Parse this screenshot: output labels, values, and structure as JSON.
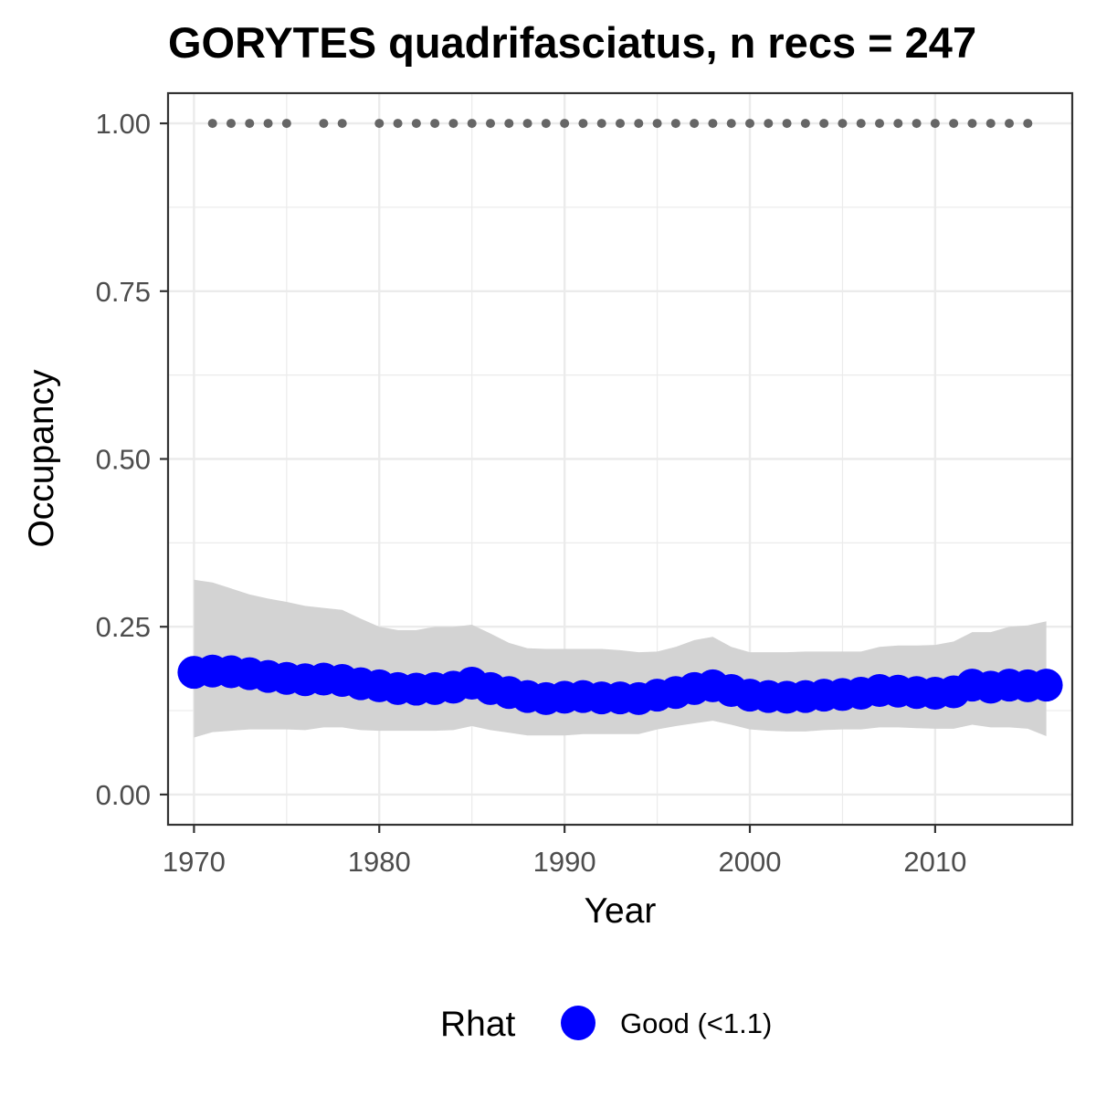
{
  "chart_data": {
    "type": "line",
    "title": "GORYTES quadrifasciatus, n recs = 247",
    "xlabel": "Year",
    "ylabel": "Occupancy",
    "xlim": [
      1968.6,
      2017.4
    ],
    "ylim": [
      -0.045,
      1.045
    ],
    "xticks": [
      1970,
      1980,
      1990,
      2000,
      2010
    ],
    "xtick_labels": [
      "1970",
      "1980",
      "1990",
      "2000",
      "2010"
    ],
    "yticks": [
      0,
      0.25,
      0.5,
      0.75,
      1.0
    ],
    "ytick_labels": [
      "0.00",
      "0.25",
      "0.50",
      "0.75",
      "1.00"
    ],
    "grid": true,
    "x": [
      1970,
      1971,
      1972,
      1973,
      1974,
      1975,
      1976,
      1977,
      1978,
      1979,
      1980,
      1981,
      1982,
      1983,
      1984,
      1985,
      1986,
      1987,
      1988,
      1989,
      1990,
      1991,
      1992,
      1993,
      1994,
      1995,
      1996,
      1997,
      1998,
      1999,
      2000,
      2001,
      2002,
      2003,
      2004,
      2005,
      2006,
      2007,
      2008,
      2009,
      2010,
      2011,
      2012,
      2013,
      2014,
      2015,
      2016
    ],
    "series": [
      {
        "name": "Good (<1.1)",
        "values": [
          0.182,
          0.184,
          0.183,
          0.18,
          0.176,
          0.173,
          0.171,
          0.172,
          0.17,
          0.165,
          0.162,
          0.158,
          0.157,
          0.158,
          0.16,
          0.166,
          0.158,
          0.152,
          0.146,
          0.143,
          0.145,
          0.146,
          0.144,
          0.144,
          0.143,
          0.148,
          0.152,
          0.158,
          0.162,
          0.155,
          0.148,
          0.146,
          0.145,
          0.146,
          0.148,
          0.149,
          0.151,
          0.155,
          0.154,
          0.152,
          0.151,
          0.153,
          0.163,
          0.16,
          0.163,
          0.162,
          0.163
        ],
        "lower": [
          0.085,
          0.093,
          0.095,
          0.097,
          0.097,
          0.097,
          0.096,
          0.1,
          0.1,
          0.096,
          0.095,
          0.095,
          0.095,
          0.095,
          0.096,
          0.102,
          0.096,
          0.092,
          0.088,
          0.088,
          0.088,
          0.09,
          0.09,
          0.09,
          0.09,
          0.097,
          0.102,
          0.106,
          0.11,
          0.104,
          0.097,
          0.095,
          0.094,
          0.094,
          0.096,
          0.097,
          0.097,
          0.1,
          0.1,
          0.099,
          0.098,
          0.098,
          0.104,
          0.1,
          0.1,
          0.098,
          0.087
        ],
        "upper": [
          0.32,
          0.316,
          0.307,
          0.298,
          0.292,
          0.287,
          0.281,
          0.278,
          0.275,
          0.262,
          0.25,
          0.245,
          0.245,
          0.25,
          0.25,
          0.253,
          0.24,
          0.226,
          0.218,
          0.217,
          0.217,
          0.217,
          0.217,
          0.215,
          0.212,
          0.213,
          0.22,
          0.23,
          0.235,
          0.22,
          0.212,
          0.212,
          0.212,
          0.213,
          0.213,
          0.213,
          0.213,
          0.22,
          0.222,
          0.222,
          0.223,
          0.228,
          0.242,
          0.242,
          0.25,
          0.252,
          0.258
        ],
        "color": "#0000ff"
      }
    ],
    "record_years": [
      1971,
      1972,
      1973,
      1974,
      1975,
      1977,
      1978,
      1980,
      1981,
      1982,
      1983,
      1984,
      1985,
      1986,
      1987,
      1988,
      1989,
      1990,
      1991,
      1992,
      1993,
      1994,
      1995,
      1996,
      1997,
      1998,
      1999,
      2000,
      2001,
      2002,
      2003,
      2004,
      2005,
      2006,
      2007,
      2008,
      2009,
      2010,
      2011,
      2012,
      2013,
      2014,
      2015
    ],
    "record_y": 1.0,
    "record_color": "#666666",
    "ribbon_color": "#d3d3d3",
    "legend": {
      "title": "Rhat",
      "placement": "bottom",
      "entries": [
        {
          "label": "Good (<1.1)",
          "color": "#0000ff"
        }
      ]
    }
  }
}
